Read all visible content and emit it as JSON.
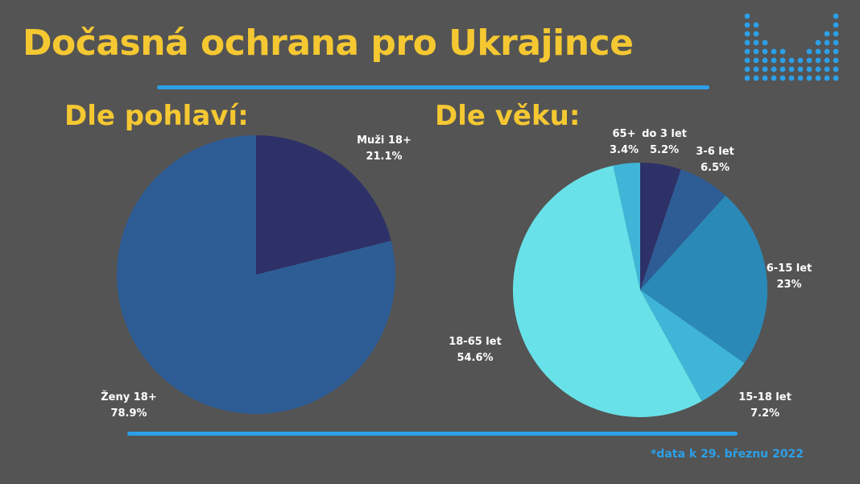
{
  "title": "Dočasná ochrana pro Ukrajince",
  "footnote": "*data k 29. březnu 2022",
  "colors": {
    "background": "#545454",
    "title": "#f5c832",
    "accent": "#2ba0e8"
  },
  "logo": {
    "icon": "equalizer-dots-logo"
  },
  "chart_data": [
    {
      "type": "pie",
      "title": "Dle pohlaví:",
      "slices": [
        {
          "label": "Muži 18+",
          "value_label": "21.1%",
          "value": 21.1,
          "color": "#2e3168"
        },
        {
          "label": "Ženy 18+",
          "value_label": "78.9%",
          "value": 78.9,
          "color": "#2e5d96"
        }
      ]
    },
    {
      "type": "pie",
      "title": "Dle věku:",
      "slices": [
        {
          "label": "do 3 let",
          "value_label": "5.2%",
          "value": 5.2,
          "color": "#2e3168"
        },
        {
          "label": "3-6 let",
          "value_label": "6.5%",
          "value": 6.5,
          "color": "#2e5d96"
        },
        {
          "label": "6-15 let",
          "value_label": "23%",
          "value": 23,
          "color": "#2b89b8"
        },
        {
          "label": "15-18 let",
          "value_label": "7.2%",
          "value": 7.2,
          "color": "#3fb5d8"
        },
        {
          "label": "18-65 let",
          "value_label": "54.6%",
          "value": 54.6,
          "color": "#68e2e8"
        },
        {
          "label": "65+",
          "value_label": "3.4%",
          "value": 3.4,
          "color": "#3fb5d8"
        }
      ]
    }
  ]
}
